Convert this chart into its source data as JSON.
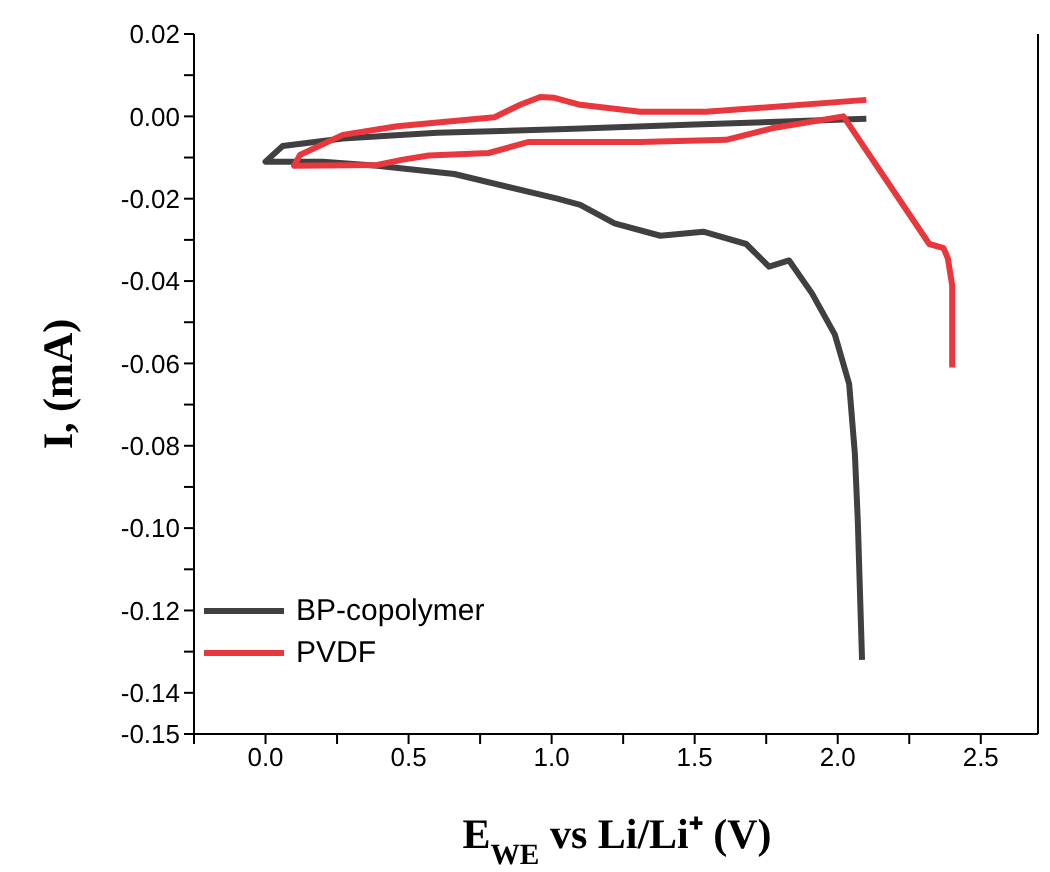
{
  "chart_data": {
    "type": "line",
    "xlabel": "E$_{WE}$ vs Li/Li⁺ (V)",
    "ylabel": "I, (mA)",
    "xlim": [
      -0.25,
      2.7
    ],
    "ylim": [
      -0.15,
      0.02
    ],
    "xticks": [
      {
        "value": -0.25,
        "label": null
      },
      {
        "value": 0,
        "label": "0.0"
      },
      {
        "value": 0.25,
        "label": null
      },
      0.5,
      {
        "value": 0.75,
        "label": null
      },
      {
        "value": 1,
        "label": "1.0"
      },
      {
        "value": 1.25,
        "label": null
      },
      1.5,
      {
        "value": 1.75,
        "label": null
      },
      {
        "value": 2,
        "label": "2.0"
      },
      {
        "value": 2.25,
        "label": null
      },
      2.5
    ],
    "yticks": [
      -0.15,
      {
        "value": -0.14,
        "label": "-0.14"
      },
      {
        "value": -0.13,
        "label": null
      },
      {
        "value": -0.12,
        "label": "-0.12"
      },
      {
        "value": -0.11,
        "label": null
      },
      {
        "value": -0.1,
        "label": "-0.10"
      },
      {
        "value": -0.09,
        "label": null
      },
      {
        "value": -0.08,
        "label": "-0.08"
      },
      {
        "value": -0.07,
        "label": null
      },
      {
        "value": -0.06,
        "label": "-0.06"
      },
      {
        "value": -0.05,
        "label": null
      },
      {
        "value": -0.04,
        "label": "-0.04"
      },
      {
        "value": -0.03,
        "label": null
      },
      {
        "value": -0.02,
        "label": "-0.02"
      },
      {
        "value": -0.01,
        "label": null
      },
      {
        "value": 0,
        "label": "0.00"
      },
      {
        "value": 0.01,
        "label": null
      },
      {
        "value": 0.02,
        "label": "0.02"
      }
    ],
    "legend": "bottom left",
    "marker": "none",
    "line_style": "solid",
    "series": [
      {
        "name": "BP-copolymer",
        "color": "#404040",
        "x": [
          2.1,
          1.5,
          1.08,
          0.6,
          0.27,
          0.06,
          0.0,
          0.2,
          0.39,
          0.66,
          1.02,
          1.1,
          1.22,
          1.38,
          1.53,
          1.68,
          1.76,
          1.83,
          1.91,
          1.99,
          2.04,
          2.06,
          2.07,
          2.085
        ],
        "values": [
          -0.0006,
          -0.002,
          -0.003,
          -0.004,
          -0.0054,
          -0.0072,
          -0.011,
          -0.011,
          -0.012,
          -0.014,
          -0.02,
          -0.0215,
          -0.026,
          -0.029,
          -0.028,
          -0.031,
          -0.0365,
          -0.035,
          -0.043,
          -0.053,
          -0.065,
          -0.082,
          -0.098,
          -0.132
        ]
      },
      {
        "name": "PVDF",
        "color": "#e8383d",
        "x": [
          2.1,
          1.54,
          1.31,
          1.1,
          1.01,
          0.96,
          0.89,
          0.8,
          0.46,
          0.27,
          0.12,
          0.1,
          0.39,
          0.48,
          0.57,
          0.78,
          0.92,
          1.31,
          1.61,
          1.77,
          2.02,
          2.32,
          2.37,
          2.385,
          2.4,
          2.4
        ],
        "values": [
          0.004,
          0.0011,
          0.0011,
          0.0028,
          0.0045,
          0.0047,
          0.0028,
          -0.0002,
          -0.0024,
          -0.0045,
          -0.0094,
          -0.012,
          -0.0118,
          -0.0105,
          -0.0095,
          -0.0089,
          -0.0062,
          -0.0062,
          -0.0057,
          -0.0029,
          0.0,
          -0.031,
          -0.032,
          -0.0345,
          -0.041,
          -0.061
        ]
      }
    ]
  }
}
